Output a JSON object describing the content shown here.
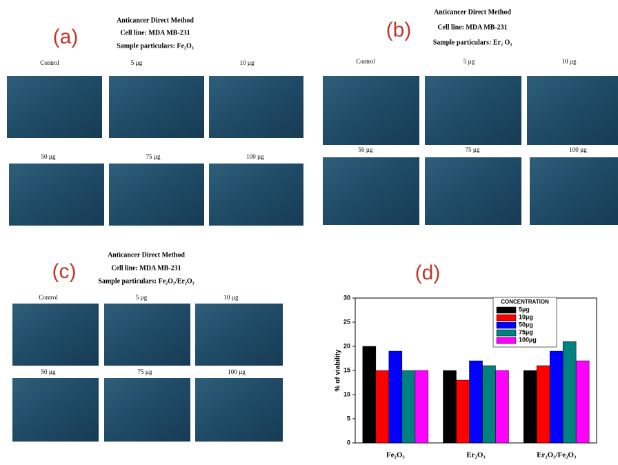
{
  "panels": [
    {
      "label": "(a)",
      "title": [
        "Anticancer Direct Method",
        "Cell line: MDA MB-231",
        "Sample particulars: Fe₂O₃"
      ],
      "images": [
        "Control",
        "5 µg",
        "10 µg",
        "50 µg",
        "75 µg",
        "100 µg"
      ]
    },
    {
      "label": "(b)",
      "title": [
        "Anticancer Direct Method",
        "Cell line: MDA MB-231",
        "Sample particulars: Er₂ O₃"
      ],
      "images": [
        "Control",
        "5 µg",
        "10 µg",
        "50 µg",
        "75 µg",
        "100 µg"
      ]
    },
    {
      "label": "(c)",
      "title": [
        "Anticancer Direct Method",
        "Cell line: MDA MB-231",
        "Sample particulars: Fe₂O₃/Er₂O₃"
      ],
      "images": [
        "Control",
        "5 µg",
        "10 µg",
        "50 µg",
        "75 µg",
        "100 µg"
      ]
    }
  ],
  "chart_data": {
    "type": "bar",
    "label": "(d)",
    "y_label": "% of viability",
    "legend_title": "CONCENTRATION",
    "categories": [
      "Fe₂O₃",
      "Er₂O₃",
      "Er₂O₃/Fe₂O₃"
    ],
    "series": [
      {
        "name": "5µg",
        "color": "#000000",
        "values": [
          20,
          15,
          15
        ]
      },
      {
        "name": "10µg",
        "color": "#ff0000",
        "values": [
          15,
          13,
          16
        ]
      },
      {
        "name": "50µg",
        "color": "#0000ff",
        "values": [
          19,
          17,
          19
        ]
      },
      {
        "name": "75µg",
        "color": "#008080",
        "values": [
          15,
          16,
          21
        ]
      },
      {
        "name": "100µg",
        "color": "#ff00ff",
        "values": [
          15,
          15,
          17
        ]
      }
    ],
    "ylim": [
      0,
      30
    ],
    "yticks": [
      0,
      5,
      10,
      15,
      20,
      25,
      30
    ]
  }
}
